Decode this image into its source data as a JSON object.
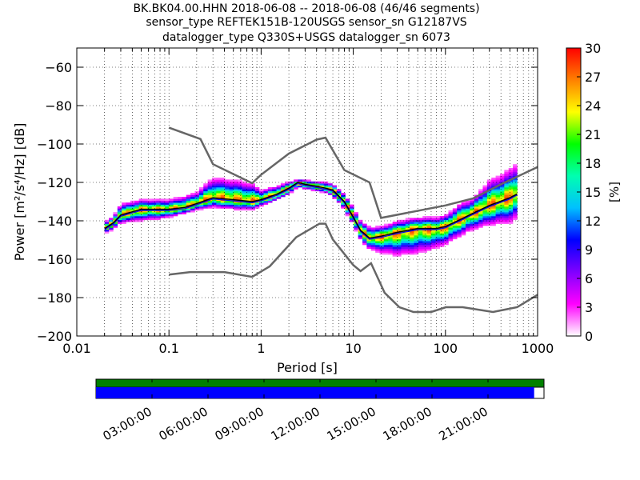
{
  "title": {
    "line1": "BK.BK04.00.HHN   2018-06-08 -- 2018-06-08  (46/46 segments)",
    "line2": "sensor_type REFTEK151B-120USGS sensor_sn G12187VS",
    "line3": "datalogger_type Q330S+USGS datalogger_sn 6073"
  },
  "colors": {
    "noise_model": "#666666",
    "mean_curve": "#000000",
    "mode_curve": "#0000ff",
    "coverage_all": "#008000",
    "coverage_data": "#0000ff"
  },
  "chart_data": [
    {
      "type": "heatmap",
      "xlabel": "Period [s]",
      "ylabel": "Power [m²/s⁴/Hz] [dB]",
      "x_scale": "log",
      "xlim": [
        0.01,
        1000
      ],
      "ylim": [
        -200,
        -50
      ],
      "x_ticks": [
        {
          "value": 0.01,
          "label": "0.01"
        },
        {
          "value": 0.1,
          "label": "0.1"
        },
        {
          "value": 1,
          "label": "1"
        },
        {
          "value": 10,
          "label": "10"
        },
        {
          "value": 100,
          "label": "100"
        },
        {
          "value": 1000,
          "label": "1000"
        }
      ],
      "y_ticks": [
        -200,
        -180,
        -160,
        -140,
        -120,
        -100,
        -80,
        -60
      ],
      "grid": true,
      "colorbar": {
        "label": "[%]",
        "range": [
          0,
          30
        ],
        "ticks": [
          0,
          3,
          6,
          9,
          12,
          15,
          18,
          21,
          24,
          27,
          30
        ],
        "colors": [
          "#ffffff",
          "#ff00ff",
          "#8000ff",
          "#0000ff",
          "#00c0ff",
          "#00ffb0",
          "#00ff00",
          "#ffff00",
          "#ff8000",
          "#ff0000"
        ]
      },
      "psd_band": {
        "periods": [
          0.02,
          0.025,
          0.03,
          0.05,
          0.08,
          0.1,
          0.15,
          0.2,
          0.3,
          0.5,
          0.8,
          1,
          1.5,
          2,
          2.5,
          3,
          4,
          5,
          6,
          8,
          10,
          12,
          15,
          20,
          30,
          50,
          80,
          100,
          150,
          200,
          300,
          500,
          600
        ],
        "mean_db": [
          -144,
          -141,
          -137,
          -134,
          -134,
          -134,
          -133,
          -131,
          -128,
          -129,
          -130,
          -129,
          -126,
          -123,
          -120,
          -121,
          -122,
          -123,
          -124,
          -130,
          -138,
          -145,
          -149,
          -148,
          -146,
          -144,
          -144,
          -143,
          -139,
          -136,
          -132,
          -128,
          -126
        ],
        "upper_db": [
          -141,
          -138,
          -131,
          -129,
          -129,
          -129,
          -127,
          -125,
          -117,
          -118,
          -120,
          -124,
          -122,
          -120,
          -119,
          -119,
          -120,
          -120,
          -121,
          -126,
          -133,
          -140,
          -143,
          -143,
          -140,
          -138,
          -138,
          -137,
          -130,
          -128,
          -118,
          -112,
          -108
        ],
        "lower_db": [
          -146,
          -144,
          -141,
          -140,
          -139,
          -138,
          -136,
          -134,
          -133,
          -134,
          -134,
          -132,
          -129,
          -126,
          -122,
          -123,
          -124,
          -125,
          -127,
          -134,
          -142,
          -150,
          -155,
          -157,
          -159,
          -158,
          -155,
          -153,
          -148,
          -145,
          -143,
          -142,
          -140
        ]
      },
      "series": [
        {
          "x": [
            0.1,
            0.22,
            0.3,
            0.8,
            1,
            2,
            4,
            5,
            8,
            15,
            20,
            100,
            200,
            400,
            1000
          ],
          "y": [
            -91.5,
            -97.4,
            -110.5,
            -120.4,
            -116,
            -105,
            -97.7,
            -96.7,
            -113.6,
            -120,
            -138.5,
            -132,
            -128.3,
            -121,
            -112
          ]
        },
        {
          "x": [
            0.1,
            0.17,
            0.4,
            0.8,
            1.24,
            2.4,
            4.3,
            5,
            6,
            10,
            12,
            15.6,
            21.9,
            31.6,
            45,
            70,
            101,
            154,
            328,
            600,
            1000
          ],
          "y": [
            -168,
            -166.7,
            -166.7,
            -169.2,
            -163.7,
            -148.6,
            -141.5,
            -141.5,
            -149.7,
            -163.1,
            -166.2,
            -162.1,
            -177.5,
            -185,
            -187.5,
            -187.5,
            -185,
            -185,
            -187.5,
            -185,
            -178.5
          ]
        }
      ]
    },
    {
      "type": "timeline",
      "tick_labels": [
        "03:00:00",
        "06:00:00",
        "09:00:00",
        "12:00:00",
        "15:00:00",
        "18:00:00",
        "21:00:00"
      ],
      "data_coverage_fraction": 0.978
    }
  ]
}
